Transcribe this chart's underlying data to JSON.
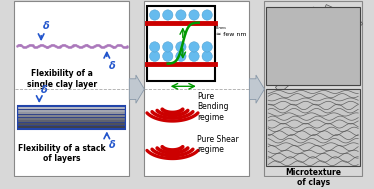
{
  "bg_color": "#d8d8d8",
  "panel1_bg": "#ffffff",
  "panel2_bg": "#ffffff",
  "panel3_bg": "#ffffff",
  "red_color": "#cc0000",
  "blue_dot_color": "#66bbee",
  "delta_color": "#2255cc",
  "green_color": "#009900",
  "title_top": "Flexibility of a\nsingle clay layer",
  "title_bot": "Flexibility of a stack\nof layers",
  "label_pure_bending": "Pure\nBending\nregime",
  "label_pure_shear": "Pure Shear\nregime",
  "label_microtexture": "Microtexture\nof clays",
  "label_few_nm": "≈ few nm",
  "clay_color_top": "#cc99cc",
  "clay_dot_color": "#9966aa",
  "stack_dark": "#222244",
  "stack_mid": "#4455aa",
  "stack_light": "#8899bb",
  "arrow_face": "#c0c8d0",
  "arrow_edge": "#8898a8"
}
